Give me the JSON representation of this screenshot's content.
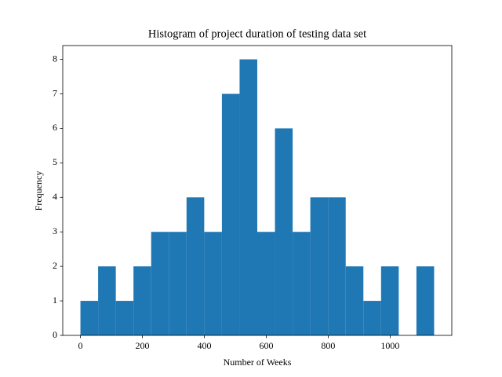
{
  "chart_data": {
    "type": "histogram",
    "title": "Histogram of project duration of testing data set",
    "x_label": "Number of Weeks",
    "y_label": "Frequency",
    "bins": [
      0,
      57.1,
      114.2,
      171.3,
      228.4,
      285.5,
      342.6,
      399.7,
      456.8,
      513.9,
      571,
      628.1,
      685.2,
      742.3,
      799.4,
      856.5,
      913.6,
      970.7,
      1027.8,
      1084.9,
      1142
    ],
    "counts": [
      1,
      2,
      1,
      2,
      3,
      3,
      4,
      3,
      7,
      8,
      3,
      6,
      3,
      4,
      4,
      2,
      1,
      2,
      0,
      2
    ],
    "color": "#1f77b4",
    "xlim": [
      -57.1,
      1199.1
    ],
    "ylim": [
      0,
      8.4
    ],
    "xticks": [
      0,
      200,
      400,
      600,
      800,
      1000
    ],
    "yticks": [
      0,
      1,
      2,
      3,
      4,
      5,
      6,
      7,
      8
    ],
    "grid": false
  }
}
